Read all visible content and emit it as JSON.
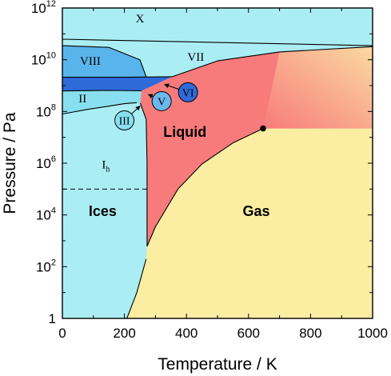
{
  "chart_data": {
    "type": "phase-diagram",
    "title": "",
    "xlabel": "Temperature / K",
    "ylabel": "Pressure / Pa",
    "x_scale": "linear",
    "y_scale": "log",
    "xlim": [
      0,
      1000
    ],
    "ylim": [
      1,
      1000000000000.0
    ],
    "x_ticks": [
      {
        "value": 0,
        "label": "0"
      },
      {
        "value": 200,
        "label": "200"
      },
      {
        "value": 400,
        "label": "400"
      },
      {
        "value": 600,
        "label": "600"
      },
      {
        "value": 800,
        "label": "800"
      },
      {
        "value": 1000,
        "label": "1000"
      }
    ],
    "y_ticks": [
      {
        "value": 1,
        "base": "1",
        "exp": ""
      },
      {
        "value": 100,
        "base": "10",
        "exp": "2"
      },
      {
        "value": 10000,
        "base": "10",
        "exp": "4"
      },
      {
        "value": 1000000,
        "base": "10",
        "exp": "6"
      },
      {
        "value": 100000000,
        "base": "10",
        "exp": "8"
      },
      {
        "value": 10000000000,
        "base": "10",
        "exp": "10"
      },
      {
        "value": 1000000000000,
        "base": "10",
        "exp": "12"
      }
    ],
    "regions": [
      {
        "name": "X",
        "label": "X",
        "label_at": [
          250,
          400000000000.0
        ],
        "color": "#aaeef4"
      },
      {
        "name": "VII",
        "label": "VII",
        "label_at": [
          430,
          13000000000.0
        ],
        "color": "#aaeef4"
      },
      {
        "name": "VIII",
        "label": "VIII",
        "label_at": [
          90,
          9000000000.0
        ],
        "color": "#5ab4ec"
      },
      {
        "name": "II",
        "label": "II",
        "label_at": [
          65,
          320000000.0
        ],
        "color": "#88dff0"
      },
      {
        "name": "Ih",
        "label": "I",
        "label_sub": "h",
        "label_at": [
          140,
          900000.0
        ],
        "color": "#aaeef4"
      },
      {
        "name": "VI",
        "color": "#2f6ad9"
      },
      {
        "name": "Ices",
        "label": "Ices",
        "label_at": [
          130,
          13000.0
        ],
        "color": "#aaeef4"
      },
      {
        "name": "Liquid",
        "label": "Liquid",
        "label_at": [
          395,
          15000000.0
        ],
        "color": "#f77b7b"
      },
      {
        "name": "Gas",
        "label": "Gas",
        "label_at": [
          625,
          13000.0
        ],
        "color": "#fbeea2"
      }
    ],
    "callouts": [
      {
        "label": "VI",
        "circle_at": [
          405,
          550000000.0
        ],
        "arrow_to": [
          330,
          1100000000.0
        ],
        "color": "#2f6ad9"
      },
      {
        "label": "V",
        "circle_at": [
          320,
          250000000.0
        ],
        "arrow_to": [
          278,
          450000000.0
        ],
        "color": "#6ab8ee"
      },
      {
        "label": "III",
        "circle_at": [
          200,
          45000000.0
        ],
        "arrow_to": [
          250,
          160000000.0
        ],
        "color": "#88dff0"
      }
    ],
    "boundaries": [
      {
        "name": "sublimation",
        "points": [
          [
            208,
            1
          ],
          [
            240,
            10
          ],
          [
            270,
            200
          ]
        ]
      },
      {
        "name": "vaporization",
        "points": [
          [
            273,
            612
          ],
          [
            300,
            3500
          ],
          [
            373,
            101325
          ],
          [
            450,
            932000
          ],
          [
            550,
            6120000
          ],
          [
            647,
            22060000
          ]
        ]
      },
      {
        "name": "melting-Ih",
        "points": [
          [
            273,
            612
          ],
          [
            273,
            1000000.0
          ],
          [
            270,
            50000000.0
          ],
          [
            251,
            210000000.0
          ]
        ]
      },
      {
        "name": "Ih-II",
        "points": [
          [
            0,
            80000000.0
          ],
          [
            80,
            120000000.0
          ],
          [
            150,
            160000000.0
          ],
          [
            200,
            200000000.0
          ],
          [
            240,
            220000000.0
          ]
        ]
      },
      {
        "name": "II-VI",
        "points": [
          [
            0,
            620000000.0
          ],
          [
            150,
            650000000.0
          ],
          [
            255,
            630000000.0
          ]
        ]
      },
      {
        "name": "VI-VII",
        "points": [
          [
            0,
            2100000000.0
          ],
          [
            200,
            2100000000.0
          ],
          [
            354,
            2200000000.0
          ]
        ]
      },
      {
        "name": "VII-liquid",
        "points": [
          [
            354,
            2200000000.0
          ],
          [
            500,
            9000000000.0
          ],
          [
            700,
            20000000000.0
          ],
          [
            1000,
            32000000000.0
          ]
        ]
      },
      {
        "name": "VIII-VII",
        "points": [
          [
            0,
            35000000000.0
          ],
          [
            150,
            30000000000.0
          ],
          [
            250,
            10000000000.0
          ],
          [
            270,
            2200000000.0
          ]
        ]
      },
      {
        "name": "X-lower",
        "points": [
          [
            0,
            62000000000.0
          ],
          [
            1000,
            35000000000.0
          ]
        ]
      }
    ],
    "critical_point": {
      "x": 647,
      "y": 22060000.0
    },
    "reference_line": {
      "y": 100000,
      "x_range": [
        0,
        273
      ],
      "style": "dashed"
    },
    "grid": false,
    "legend": "none"
  }
}
